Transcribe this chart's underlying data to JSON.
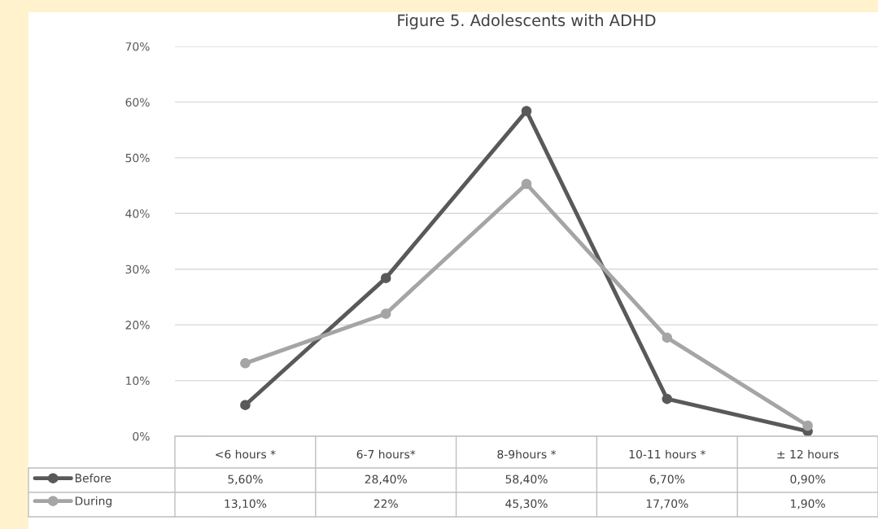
{
  "chart_data": {
    "type": "line",
    "title": "Figure 5. Adolescents with ADHD",
    "categories": [
      "<6 hours *",
      "6-7 hours*",
      "8-9hours *",
      "10-11 hours *",
      "± 12 hours"
    ],
    "series": [
      {
        "name": "Before",
        "color": "#595959",
        "values": [
          5.6,
          28.4,
          58.4,
          6.7,
          0.9
        ],
        "value_labels": [
          "5,60%",
          "28,40%",
          "58,40%",
          "6,70%",
          "0,90%"
        ]
      },
      {
        "name": "During",
        "color": "#a5a5a5",
        "values": [
          13.1,
          22,
          45.3,
          17.7,
          1.9
        ],
        "value_labels": [
          "13,10%",
          "22%",
          "45,30%",
          "17,70%",
          "1,90%"
        ]
      }
    ],
    "ylim": [
      0,
      70
    ],
    "yticks": [
      {
        "value": 0,
        "label": "0%"
      },
      {
        "value": 10,
        "label": "10%"
      },
      {
        "value": 20,
        "label": "20%"
      },
      {
        "value": 30,
        "label": "30%"
      },
      {
        "value": 40,
        "label": "40%"
      },
      {
        "value": 50,
        "label": "50%"
      },
      {
        "value": 60,
        "label": "60%"
      },
      {
        "value": 70,
        "label": "70%"
      }
    ],
    "grid": "y",
    "legend": "bottom left",
    "marker": "circle",
    "line_style": "solid"
  }
}
